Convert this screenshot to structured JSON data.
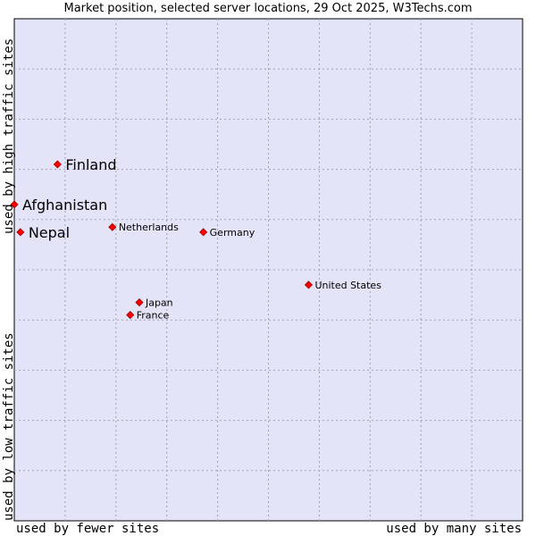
{
  "chart_data": {
    "type": "scatter",
    "title": "Market position, selected server locations, 29 Oct 2025, W3Techs.com",
    "xlabel_left": "used by fewer sites",
    "xlabel_right": "used by many sites",
    "ylabel_bottom": "used by low traffic sites",
    "ylabel_top": "used by high traffic sites",
    "xlim": [
      0,
      10
    ],
    "ylim": [
      0,
      10
    ],
    "grid": true,
    "colors": {
      "plot_bg": "#e4e4f8",
      "grid": "#a0a0c0",
      "point": "#ff0000",
      "point_edge": "#990000"
    },
    "points": [
      {
        "label": "Finland",
        "x": 0.85,
        "y": 7.1,
        "emphasis": true
      },
      {
        "label": "Afghanistan",
        "x": 0.0,
        "y": 6.3,
        "emphasis": true
      },
      {
        "label": "Nepal",
        "x": 0.12,
        "y": 5.75,
        "emphasis": true
      },
      {
        "label": "Netherlands",
        "x": 1.93,
        "y": 5.85,
        "emphasis": false
      },
      {
        "label": "Germany",
        "x": 3.72,
        "y": 5.75,
        "emphasis": false
      },
      {
        "label": "United States",
        "x": 5.79,
        "y": 4.7,
        "emphasis": false
      },
      {
        "label": "Japan",
        "x": 2.46,
        "y": 4.35,
        "emphasis": false
      },
      {
        "label": "France",
        "x": 2.28,
        "y": 4.1,
        "emphasis": false
      }
    ]
  }
}
